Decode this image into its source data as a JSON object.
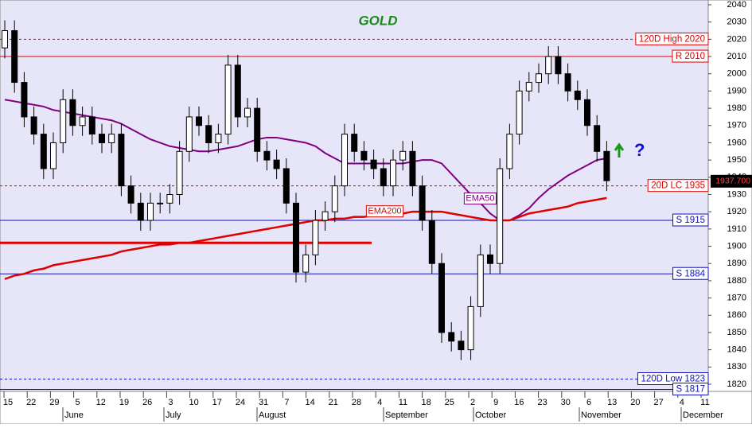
{
  "chart_data": {
    "type": "candlestick",
    "title": "GOLD",
    "open": [
      2015,
      2025,
      1995,
      1975,
      1965,
      1945,
      1960,
      1985,
      1970,
      1975,
      1965,
      1960,
      1965,
      1935,
      1925,
      1915,
      1925,
      1925,
      1930,
      1955,
      1975,
      1970,
      1960,
      1965,
      2005,
      1975,
      1980,
      1955,
      1950,
      1945,
      1925,
      1885,
      1895,
      1915,
      1920,
      1935,
      1965,
      1955,
      1950,
      1945,
      1935,
      1950,
      1955,
      1935,
      1915,
      1890,
      1850,
      1845,
      1840,
      1865,
      1895,
      1890,
      1945,
      1965,
      1990,
      1995,
      2000,
      2010,
      2000,
      1990,
      1985,
      1970,
      1955
    ],
    "high": [
      2031,
      2031,
      2001,
      1981,
      1971,
      1966,
      1991,
      1991,
      1981,
      1981,
      1971,
      1971,
      1971,
      1941,
      1931,
      1931,
      1931,
      1936,
      1961,
      1981,
      1981,
      1976,
      1971,
      2011,
      2011,
      1986,
      1986,
      1961,
      1956,
      1951,
      1931,
      1901,
      1921,
      1926,
      1941,
      1971,
      1971,
      1961,
      1956,
      1951,
      1956,
      1961,
      1961,
      1941,
      1921,
      1896,
      1856,
      1851,
      1871,
      1901,
      1901,
      1951,
      1971,
      1996,
      2001,
      2006,
      2016,
      2016,
      2006,
      1996,
      1991,
      1976,
      1961
    ],
    "low": [
      2009,
      1989,
      1969,
      1959,
      1939,
      1939,
      1954,
      1964,
      1964,
      1959,
      1954,
      1954,
      1929,
      1919,
      1909,
      1909,
      1919,
      1919,
      1924,
      1949,
      1964,
      1954,
      1954,
      1959,
      1969,
      1969,
      1949,
      1944,
      1939,
      1919,
      1879,
      1879,
      1889,
      1909,
      1914,
      1929,
      1949,
      1944,
      1939,
      1929,
      1929,
      1944,
      1929,
      1909,
      1884,
      1844,
      1839,
      1834,
      1834,
      1859,
      1884,
      1884,
      1939,
      1959,
      1984,
      1989,
      1994,
      1994,
      1984,
      1979,
      1964,
      1949,
      1932
    ],
    "close": [
      2025,
      1995,
      1975,
      1965,
      1945,
      1960,
      1985,
      1970,
      1975,
      1965,
      1960,
      1965,
      1935,
      1925,
      1915,
      1925,
      1925,
      1930,
      1955,
      1975,
      1970,
      1960,
      1965,
      2005,
      1975,
      1980,
      1955,
      1950,
      1945,
      1925,
      1885,
      1895,
      1915,
      1920,
      1935,
      1965,
      1955,
      1950,
      1945,
      1935,
      1950,
      1955,
      1935,
      1915,
      1890,
      1850,
      1845,
      1840,
      1865,
      1895,
      1890,
      1945,
      1965,
      1990,
      1995,
      2000,
      2010,
      2000,
      1990,
      1985,
      1970,
      1955,
      1938
    ],
    "series": [
      {
        "name": "EMA50",
        "color": "#800080",
        "values": [
          1985,
          1984,
          1983,
          1982,
          1981,
          1979,
          1978,
          1977,
          1976,
          1975,
          1974,
          1973,
          1971,
          1968,
          1965,
          1962,
          1960,
          1958,
          1957,
          1956,
          1955,
          1955,
          1956,
          1957,
          1958,
          1960,
          1962,
          1963,
          1963,
          1962,
          1961,
          1960,
          1958,
          1954,
          1951,
          1948,
          1948,
          1948,
          1948,
          1948,
          1948,
          1948,
          1949,
          1950,
          1950,
          1948,
          1942,
          1936,
          1930,
          1925,
          1919,
          1915,
          1915,
          1918,
          1922,
          1928,
          1933,
          1937,
          1941,
          1944,
          1947,
          1950,
          1951
        ]
      },
      {
        "name": "EMA200",
        "color": "#e00000",
        "values": [
          1881,
          1883,
          1884,
          1886,
          1887,
          1889,
          1890,
          1891,
          1892,
          1893,
          1894,
          1895,
          1897,
          1898,
          1899,
          1900,
          1901,
          1901,
          1902,
          1902,
          1903,
          1904,
          1905,
          1906,
          1907,
          1908,
          1909,
          1910,
          1911,
          1912,
          1913,
          1914,
          1915,
          1915,
          1916,
          1916,
          1917,
          1917,
          1918,
          1918,
          1919,
          1919,
          1920,
          1920,
          1920,
          1920,
          1919,
          1918,
          1917,
          1916,
          1915,
          1915,
          1915,
          1917,
          1919,
          1920,
          1921,
          1922,
          1923,
          1925,
          1926,
          1927,
          1928
        ]
      }
    ],
    "levels": [
      {
        "label": "120D High 2020",
        "value": 2020,
        "color": "#e00000",
        "dash": true
      },
      {
        "label": "R 2010",
        "value": 2010,
        "color": "#e00000",
        "dash": false
      },
      {
        "label": "20D LC 1935",
        "value": 1935,
        "color": "#e00000",
        "dash": true
      },
      {
        "label": "S 1915",
        "value": 1915,
        "color": "#1010c0",
        "dash": false
      },
      {
        "label": "S 1884",
        "value": 1884,
        "color": "#1010c0",
        "dash": false
      },
      {
        "label": "120D Low 1823",
        "value": 1823,
        "color": "#1010c0",
        "dash": true
      },
      {
        "label": "S 1817",
        "value": 1817,
        "color": "#1010c0",
        "dash": false
      }
    ],
    "support_line": {
      "value": 1902,
      "color": "#e00000"
    },
    "last_price": {
      "value": 1937.7,
      "label": "1937.700"
    },
    "annotations": [
      "?"
    ],
    "ylim": [
      1820,
      2040
    ],
    "yticks": [
      1820,
      1830,
      1840,
      1850,
      1860,
      1870,
      1880,
      1890,
      1900,
      1910,
      1920,
      1930,
      1940,
      1950,
      1960,
      1970,
      1980,
      1990,
      2000,
      2010,
      2020,
      2030,
      2040
    ],
    "x_labels": [
      "15",
      "22",
      "29",
      "5",
      "12",
      "19",
      "26",
      "3",
      "10",
      "17",
      "24",
      "31",
      "7",
      "14",
      "21",
      "28",
      "4",
      "11",
      "18",
      "25",
      "2",
      "9",
      "16",
      "23",
      "30",
      "6",
      "13",
      "20",
      "27",
      "4",
      "11"
    ],
    "months": [
      "June",
      "July",
      "August",
      "September",
      "October",
      "November",
      "December"
    ]
  }
}
